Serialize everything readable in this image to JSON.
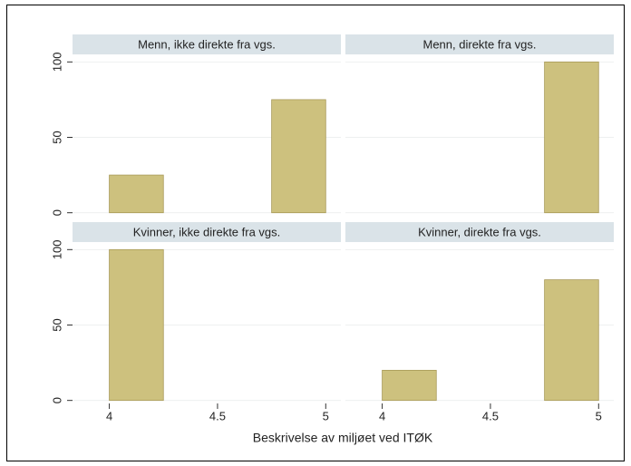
{
  "xlabel": "Beskrivelse av miljøet ved ITØK",
  "chart_data": [
    {
      "type": "histogram",
      "title": "Menn, ikke direkte fra vgs.",
      "bins": [
        4,
        4.25,
        4.5,
        4.75,
        5
      ],
      "values": [
        25,
        0,
        0,
        75
      ],
      "color": "#cdc17e",
      "xlim": [
        3.83,
        5.07
      ],
      "ylim": [
        -2,
        105
      ],
      "yticks": [
        0,
        50,
        100
      ],
      "grid": true
    },
    {
      "type": "histogram",
      "title": "Menn, direkte fra vgs.",
      "bins": [
        4,
        4.25,
        4.5,
        4.75,
        5
      ],
      "values": [
        0,
        0,
        0,
        100
      ],
      "color": "#cdc17e",
      "xlim": [
        3.83,
        5.07
      ],
      "ylim": [
        -2,
        105
      ],
      "grid": true
    },
    {
      "type": "histogram",
      "title": "Kvinner, ikke direkte fra vgs.",
      "bins": [
        4,
        4.25,
        4.5,
        4.75,
        5
      ],
      "values": [
        100,
        0,
        0,
        0
      ],
      "color": "#cdc17e",
      "xlim": [
        3.83,
        5.07
      ],
      "ylim": [
        -2,
        105
      ],
      "yticks": [
        0,
        50,
        100
      ],
      "xticks": [
        4,
        4.5,
        5
      ],
      "grid": true
    },
    {
      "type": "histogram",
      "title": "Kvinner, direkte fra vgs.",
      "bins": [
        4,
        4.25,
        4.5,
        4.75,
        5
      ],
      "values": [
        20,
        0,
        0,
        80
      ],
      "color": "#cdc17e",
      "xlim": [
        3.83,
        5.07
      ],
      "ylim": [
        -2,
        105
      ],
      "xticks": [
        4,
        4.5,
        5
      ],
      "grid": true
    }
  ]
}
